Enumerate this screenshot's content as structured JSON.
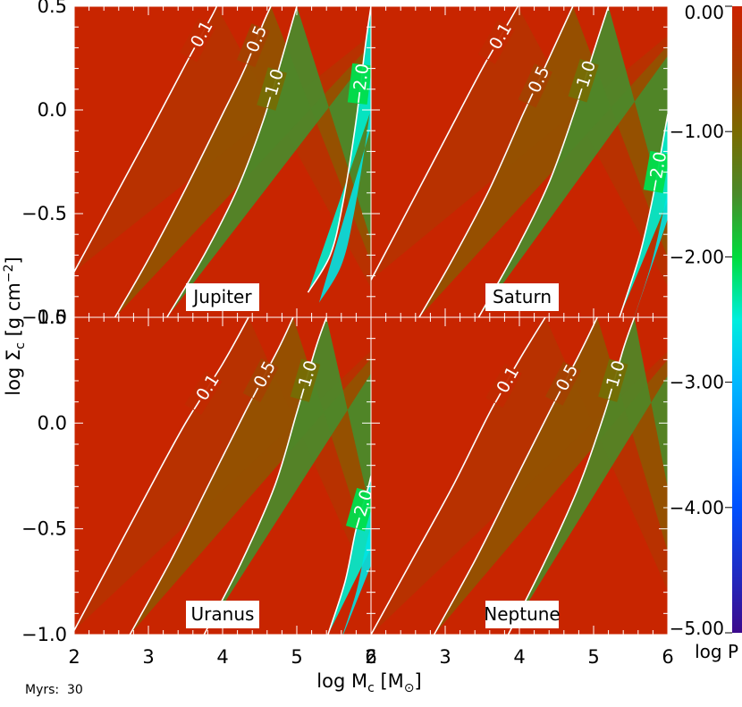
{
  "chart_data": {
    "type": "heatmap",
    "x_axis": {
      "label_main": "log M",
      "label_sub": "c",
      "label_unit_open": " [M",
      "label_unit_sub": "⊙",
      "label_unit_close": "]",
      "range": [
        2,
        6
      ],
      "ticks": [
        2,
        3,
        4,
        5,
        6
      ],
      "tick_labels": [
        "2",
        "3",
        "4",
        "5",
        "6"
      ]
    },
    "y_axis": {
      "label_main": "log Σ",
      "label_sub": "c",
      "label_unit": " [g cm",
      "label_sup": "−2",
      "label_close": "]",
      "range": [
        -1.0,
        0.5
      ],
      "ticks": [
        -1.0,
        -0.5,
        0.0,
        0.5
      ],
      "tick_labels": [
        "−1.0",
        "−0.5",
        "0.0",
        "0.5"
      ]
    },
    "colorbar": {
      "label": "log P",
      "range": [
        -5.0,
        0.0
      ],
      "ticks": [
        0.0,
        -1.0,
        -2.0,
        -3.0,
        -4.0,
        -5.0
      ],
      "tick_labels": [
        "0.00",
        "−1.00",
        "−2.00",
        "−3.00",
        "−4.00",
        "−5.00"
      ],
      "colormap": [
        [
          0.0,
          "#cc2200"
        ],
        [
          -0.5,
          "#a83c00"
        ],
        [
          -1.0,
          "#7a6a00"
        ],
        [
          -1.5,
          "#4a8a2a"
        ],
        [
          -2.0,
          "#00dc3c"
        ],
        [
          -2.5,
          "#00eedd"
        ],
        [
          -3.0,
          "#00b8ff"
        ],
        [
          -4.0,
          "#0050ff"
        ],
        [
          -5.0,
          "#3c0a8c"
        ]
      ]
    },
    "panels": [
      {
        "name": "Jupiter",
        "contours": [
          {
            "level": -0.1,
            "label": "−0.1",
            "points": [
              [
                2.0,
                -0.78
              ],
              [
                2.5,
                -0.45
              ],
              [
                3.0,
                -0.12
              ],
              [
                3.5,
                0.22
              ],
              [
                3.85,
                0.45
              ],
              [
                3.92,
                0.5
              ]
            ]
          },
          {
            "level": -0.5,
            "label": "−0.5",
            "points": [
              [
                2.55,
                -1.0
              ],
              [
                3.0,
                -0.72
              ],
              [
                3.5,
                -0.38
              ],
              [
                4.0,
                -0.02
              ],
              [
                4.3,
                0.2
              ],
              [
                4.55,
                0.42
              ],
              [
                4.65,
                0.5
              ]
            ]
          },
          {
            "level": -1.0,
            "label": "−1.0",
            "points": [
              [
                3.25,
                -1.0
              ],
              [
                3.75,
                -0.7
              ],
              [
                4.2,
                -0.38
              ],
              [
                4.55,
                -0.05
              ],
              [
                4.8,
                0.25
              ],
              [
                5.0,
                0.5
              ]
            ]
          },
          {
            "level": -2.0,
            "label": "−2.0",
            "points": [
              [
                5.15,
                -0.88
              ],
              [
                5.45,
                -0.7
              ],
              [
                5.62,
                -0.45
              ],
              [
                5.8,
                -0.05
              ],
              [
                5.92,
                0.3
              ],
              [
                6.0,
                0.5
              ]
            ]
          }
        ]
      },
      {
        "name": "Saturn",
        "contours": [
          {
            "level": -0.1,
            "label": "−0.1",
            "points": [
              [
                2.0,
                -0.82
              ],
              [
                2.5,
                -0.48
              ],
              [
                3.0,
                -0.14
              ],
              [
                3.5,
                0.2
              ],
              [
                3.9,
                0.45
              ],
              [
                3.98,
                0.5
              ]
            ]
          },
          {
            "level": -0.5,
            "label": "−0.5",
            "points": [
              [
                2.65,
                -1.0
              ],
              [
                3.1,
                -0.72
              ],
              [
                3.6,
                -0.38
              ],
              [
                4.05,
                -0.02
              ],
              [
                4.4,
                0.25
              ],
              [
                4.72,
                0.5
              ]
            ]
          },
          {
            "level": -1.0,
            "label": "−1.0",
            "points": [
              [
                3.45,
                -1.0
              ],
              [
                3.95,
                -0.68
              ],
              [
                4.4,
                -0.35
              ],
              [
                4.75,
                0.0
              ],
              [
                5.0,
                0.28
              ],
              [
                5.2,
                0.5
              ]
            ]
          },
          {
            "level": -2.0,
            "label": "−2.0",
            "points": [
              [
                5.35,
                -1.0
              ],
              [
                5.62,
                -0.7
              ],
              [
                5.8,
                -0.42
              ],
              [
                5.92,
                -0.18
              ],
              [
                6.0,
                -0.02
              ]
            ]
          }
        ]
      },
      {
        "name": "Uranus",
        "contours": [
          {
            "level": -0.1,
            "label": "−0.1",
            "points": [
              [
                2.0,
                -0.98
              ],
              [
                2.5,
                -0.65
              ],
              [
                3.0,
                -0.32
              ],
              [
                3.5,
                0.0
              ],
              [
                4.0,
                0.28
              ],
              [
                4.35,
                0.5
              ]
            ]
          },
          {
            "level": -0.5,
            "label": "−0.5",
            "points": [
              [
                2.75,
                -1.0
              ],
              [
                3.3,
                -0.65
              ],
              [
                3.8,
                -0.3
              ],
              [
                4.3,
                0.05
              ],
              [
                4.75,
                0.35
              ],
              [
                4.95,
                0.5
              ]
            ]
          },
          {
            "level": -1.0,
            "label": "−1.0",
            "points": [
              [
                3.75,
                -1.0
              ],
              [
                4.25,
                -0.66
              ],
              [
                4.7,
                -0.3
              ],
              [
                5.0,
                0.05
              ],
              [
                5.25,
                0.35
              ],
              [
                5.4,
                0.5
              ]
            ]
          },
          {
            "level": -2.0,
            "label": "−2.0",
            "points": [
              [
                5.42,
                -1.0
              ],
              [
                5.65,
                -0.75
              ],
              [
                5.8,
                -0.5
              ],
              [
                5.95,
                -0.32
              ],
              [
                6.0,
                -0.25
              ]
            ]
          }
        ]
      },
      {
        "name": "Neptune",
        "contours": [
          {
            "level": -0.1,
            "label": "−0.1",
            "points": [
              [
                2.0,
                -1.0
              ],
              [
                2.55,
                -0.65
              ],
              [
                3.1,
                -0.3
              ],
              [
                3.6,
                0.05
              ],
              [
                4.0,
                0.3
              ],
              [
                4.35,
                0.5
              ]
            ]
          },
          {
            "level": -0.5,
            "label": "−0.5",
            "points": [
              [
                2.85,
                -1.0
              ],
              [
                3.4,
                -0.65
              ],
              [
                3.9,
                -0.3
              ],
              [
                4.4,
                0.05
              ],
              [
                4.8,
                0.32
              ],
              [
                5.05,
                0.5
              ]
            ]
          },
          {
            "level": -1.0,
            "label": "−1.0",
            "points": [
              [
                3.85,
                -1.0
              ],
              [
                4.35,
                -0.65
              ],
              [
                4.8,
                -0.3
              ],
              [
                5.15,
                0.05
              ],
              [
                5.4,
                0.35
              ],
              [
                5.55,
                0.5
              ]
            ]
          }
        ]
      }
    ]
  },
  "footer": {
    "label": "Myrs:",
    "value": "30"
  }
}
